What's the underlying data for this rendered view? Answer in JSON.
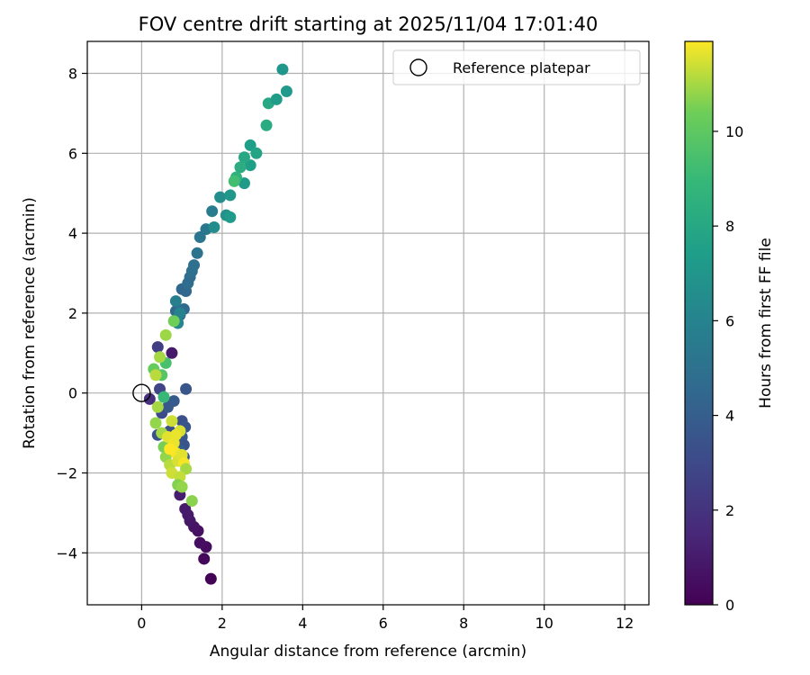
{
  "chart_data": {
    "type": "scatter",
    "title": "FOV centre drift starting at 2025/11/04 17:01:40",
    "xlabel": "Angular distance from reference (arcmin)",
    "ylabel": "Rotation from reference (arcmin)",
    "xlim": [
      -1.35,
      12.6
    ],
    "ylim": [
      -5.3,
      8.8
    ],
    "xticks": [
      0,
      2,
      4,
      6,
      8,
      10,
      12
    ],
    "yticks": [
      -4,
      -2,
      0,
      2,
      4,
      6,
      8
    ],
    "grid": true,
    "legend": {
      "label": "Reference platepar",
      "position": "top-right"
    },
    "reference_point": {
      "x": 0,
      "y": 0
    },
    "colorbar": {
      "label": "Hours from first FF file",
      "range": [
        0,
        11.9
      ],
      "ticks": [
        0,
        2,
        4,
        6,
        8,
        10
      ],
      "colormap": "viridis"
    },
    "points": [
      {
        "x": 1.72,
        "y": -4.65,
        "c": 0.1
      },
      {
        "x": 1.55,
        "y": -4.15,
        "c": 0.3
      },
      {
        "x": 1.6,
        "y": -3.85,
        "c": 0.4
      },
      {
        "x": 1.45,
        "y": -3.75,
        "c": 0.5
      },
      {
        "x": 1.4,
        "y": -3.45,
        "c": 0.6
      },
      {
        "x": 1.3,
        "y": -3.35,
        "c": 0.7
      },
      {
        "x": 1.2,
        "y": -3.2,
        "c": 0.8
      },
      {
        "x": 1.15,
        "y": -3.05,
        "c": 0.9
      },
      {
        "x": 1.08,
        "y": -2.9,
        "c": 1.0
      },
      {
        "x": 0.95,
        "y": -2.55,
        "c": 1.1
      },
      {
        "x": 0.75,
        "y": 1.0,
        "c": 0.9
      },
      {
        "x": 0.2,
        "y": -0.15,
        "c": 1.8
      },
      {
        "x": 0.4,
        "y": 1.15,
        "c": 2.5
      },
      {
        "x": 0.45,
        "y": 0.1,
        "c": 2.8
      },
      {
        "x": 0.5,
        "y": -0.5,
        "c": 3.0
      },
      {
        "x": 1.1,
        "y": 0.1,
        "c": 3.6
      },
      {
        "x": 0.65,
        "y": -0.35,
        "c": 3.7
      },
      {
        "x": 0.8,
        "y": -0.2,
        "c": 3.8
      },
      {
        "x": 1.0,
        "y": -0.7,
        "c": 3.3
      },
      {
        "x": 1.08,
        "y": -0.85,
        "c": 3.5
      },
      {
        "x": 1.0,
        "y": -1.1,
        "c": 3.7
      },
      {
        "x": 1.05,
        "y": -1.3,
        "c": 3.5
      },
      {
        "x": 0.95,
        "y": -1.45,
        "c": 3.9
      },
      {
        "x": 1.05,
        "y": -1.6,
        "c": 3.6
      },
      {
        "x": 0.7,
        "y": -0.95,
        "c": 3.2
      },
      {
        "x": 0.4,
        "y": -1.05,
        "c": 3.4
      },
      {
        "x": 0.95,
        "y": 1.95,
        "c": 4.3
      },
      {
        "x": 0.85,
        "y": 2.05,
        "c": 4.5
      },
      {
        "x": 1.05,
        "y": 2.1,
        "c": 4.6
      },
      {
        "x": 1.0,
        "y": 2.6,
        "c": 4.4
      },
      {
        "x": 1.1,
        "y": 2.55,
        "c": 4.5
      },
      {
        "x": 1.15,
        "y": 2.75,
        "c": 4.8
      },
      {
        "x": 1.2,
        "y": 2.9,
        "c": 4.7
      },
      {
        "x": 1.25,
        "y": 3.05,
        "c": 5.0
      },
      {
        "x": 1.3,
        "y": 3.2,
        "c": 4.9
      },
      {
        "x": 1.38,
        "y": 3.5,
        "c": 5.1
      },
      {
        "x": 1.45,
        "y": 3.9,
        "c": 5.2
      },
      {
        "x": 1.6,
        "y": 4.1,
        "c": 5.3
      },
      {
        "x": 1.75,
        "y": 4.55,
        "c": 5.6
      },
      {
        "x": 0.85,
        "y": 2.3,
        "c": 5.8
      },
      {
        "x": 0.95,
        "y": 2.0,
        "c": 6.0
      },
      {
        "x": 0.9,
        "y": 1.75,
        "c": 6.2
      },
      {
        "x": 1.8,
        "y": 4.15,
        "c": 6.5
      },
      {
        "x": 1.95,
        "y": 4.9,
        "c": 6.6
      },
      {
        "x": 2.1,
        "y": 4.45,
        "c": 6.8
      },
      {
        "x": 2.2,
        "y": 4.95,
        "c": 7.0
      },
      {
        "x": 2.2,
        "y": 4.4,
        "c": 7.2
      },
      {
        "x": 2.55,
        "y": 5.25,
        "c": 7.3
      },
      {
        "x": 2.7,
        "y": 5.7,
        "c": 7.5
      },
      {
        "x": 2.7,
        "y": 6.2,
        "c": 7.5
      },
      {
        "x": 2.85,
        "y": 6.0,
        "c": 7.8
      },
      {
        "x": 2.55,
        "y": 5.9,
        "c": 8.0
      },
      {
        "x": 2.45,
        "y": 5.65,
        "c": 8.3
      },
      {
        "x": 2.35,
        "y": 5.4,
        "c": 8.6
      },
      {
        "x": 3.1,
        "y": 6.7,
        "c": 8.2
      },
      {
        "x": 3.15,
        "y": 7.25,
        "c": 8.0
      },
      {
        "x": 3.35,
        "y": 7.35,
        "c": 7.4
      },
      {
        "x": 3.6,
        "y": 7.55,
        "c": 7.2
      },
      {
        "x": 3.5,
        "y": 8.1,
        "c": 7.0
      },
      {
        "x": 2.3,
        "y": 5.3,
        "c": 9.3
      },
      {
        "x": 0.55,
        "y": -0.1,
        "c": 9.0
      },
      {
        "x": 0.6,
        "y": 0.75,
        "c": 9.5
      },
      {
        "x": 0.5,
        "y": 0.45,
        "c": 9.8
      },
      {
        "x": 0.3,
        "y": 0.6,
        "c": 10.2
      },
      {
        "x": 0.8,
        "y": 1.8,
        "c": 10.4
      },
      {
        "x": 0.6,
        "y": 1.45,
        "c": 10.9
      },
      {
        "x": 0.45,
        "y": 0.9,
        "c": 11.0
      },
      {
        "x": 0.35,
        "y": 0.45,
        "c": 11.2
      },
      {
        "x": 0.4,
        "y": -0.35,
        "c": 11.0
      },
      {
        "x": 0.35,
        "y": -0.75,
        "c": 10.8
      },
      {
        "x": 0.5,
        "y": -1.0,
        "c": 11.0
      },
      {
        "x": 0.55,
        "y": -1.35,
        "c": 10.5
      },
      {
        "x": 0.6,
        "y": -1.6,
        "c": 10.8
      },
      {
        "x": 0.7,
        "y": -1.8,
        "c": 11.2
      },
      {
        "x": 0.75,
        "y": -2.0,
        "c": 11.4
      },
      {
        "x": 0.65,
        "y": -1.1,
        "c": 11.6
      },
      {
        "x": 0.8,
        "y": -1.25,
        "c": 11.7
      },
      {
        "x": 0.85,
        "y": -1.5,
        "c": 11.8
      },
      {
        "x": 0.9,
        "y": -1.7,
        "c": 11.5
      },
      {
        "x": 1.0,
        "y": -1.55,
        "c": 11.6
      },
      {
        "x": 1.05,
        "y": -1.75,
        "c": 11.8
      },
      {
        "x": 1.1,
        "y": -1.9,
        "c": 11.0
      },
      {
        "x": 0.95,
        "y": -2.1,
        "c": 11.3
      },
      {
        "x": 0.9,
        "y": -2.3,
        "c": 10.6
      },
      {
        "x": 1.0,
        "y": -2.35,
        "c": 10.8
      },
      {
        "x": 1.25,
        "y": -2.7,
        "c": 10.7
      },
      {
        "x": 0.75,
        "y": -0.7,
        "c": 11.4
      },
      {
        "x": 0.95,
        "y": -0.95,
        "c": 11.5
      },
      {
        "x": 0.7,
        "y": -1.4,
        "c": 11.9
      },
      {
        "x": 0.85,
        "y": -1.05,
        "c": 11.7
      }
    ]
  }
}
